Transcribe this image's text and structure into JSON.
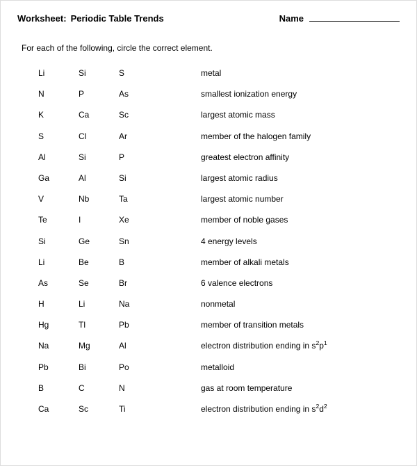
{
  "header": {
    "title_prefix": "Worksheet:",
    "title_main": "Periodic Table Trends",
    "name_label": "Name"
  },
  "instructions": "For each of the following, circle the correct element.",
  "rows": [
    {
      "e": [
        "Li",
        "Si",
        "S"
      ],
      "desc": "metal"
    },
    {
      "e": [
        "N",
        "P",
        "As"
      ],
      "desc": "smallest ionization energy"
    },
    {
      "e": [
        "K",
        "Ca",
        "Sc"
      ],
      "desc": "largest atomic mass"
    },
    {
      "e": [
        "S",
        "Cl",
        "Ar"
      ],
      "desc": "member of the halogen family"
    },
    {
      "e": [
        "Al",
        "Si",
        "P"
      ],
      "desc": "greatest electron affinity"
    },
    {
      "e": [
        "Ga",
        "Al",
        "Si"
      ],
      "desc": "largest atomic radius"
    },
    {
      "e": [
        "V",
        "Nb",
        "Ta"
      ],
      "desc": "largest atomic number"
    },
    {
      "e": [
        "Te",
        "I",
        "Xe"
      ],
      "desc": "member of noble gases"
    },
    {
      "e": [
        "Si",
        "Ge",
        "Sn"
      ],
      "desc": "4 energy levels"
    },
    {
      "e": [
        "Li",
        "Be",
        "B"
      ],
      "desc": "member of alkali metals"
    },
    {
      "e": [
        "As",
        "Se",
        "Br"
      ],
      "desc": "6 valence electrons"
    },
    {
      "e": [
        "H",
        "Li",
        "Na"
      ],
      "desc": "nonmetal"
    },
    {
      "e": [
        "Hg",
        "Tl",
        "Pb"
      ],
      "desc": "member of transition metals"
    },
    {
      "e": [
        "Na",
        "Mg",
        "Al"
      ],
      "desc_html": "electron distribution ending in s<sup>2</sup>p<sup>1</sup>"
    },
    {
      "e": [
        "Pb",
        "Bi",
        "Po"
      ],
      "desc": "metalloid"
    },
    {
      "e": [
        "B",
        "C",
        "N"
      ],
      "desc": "gas at room temperature"
    },
    {
      "e": [
        "Ca",
        "Sc",
        "Ti"
      ],
      "desc_html": "electron distribution ending in s<sup>2</sup>d<sup>2</sup>"
    }
  ]
}
